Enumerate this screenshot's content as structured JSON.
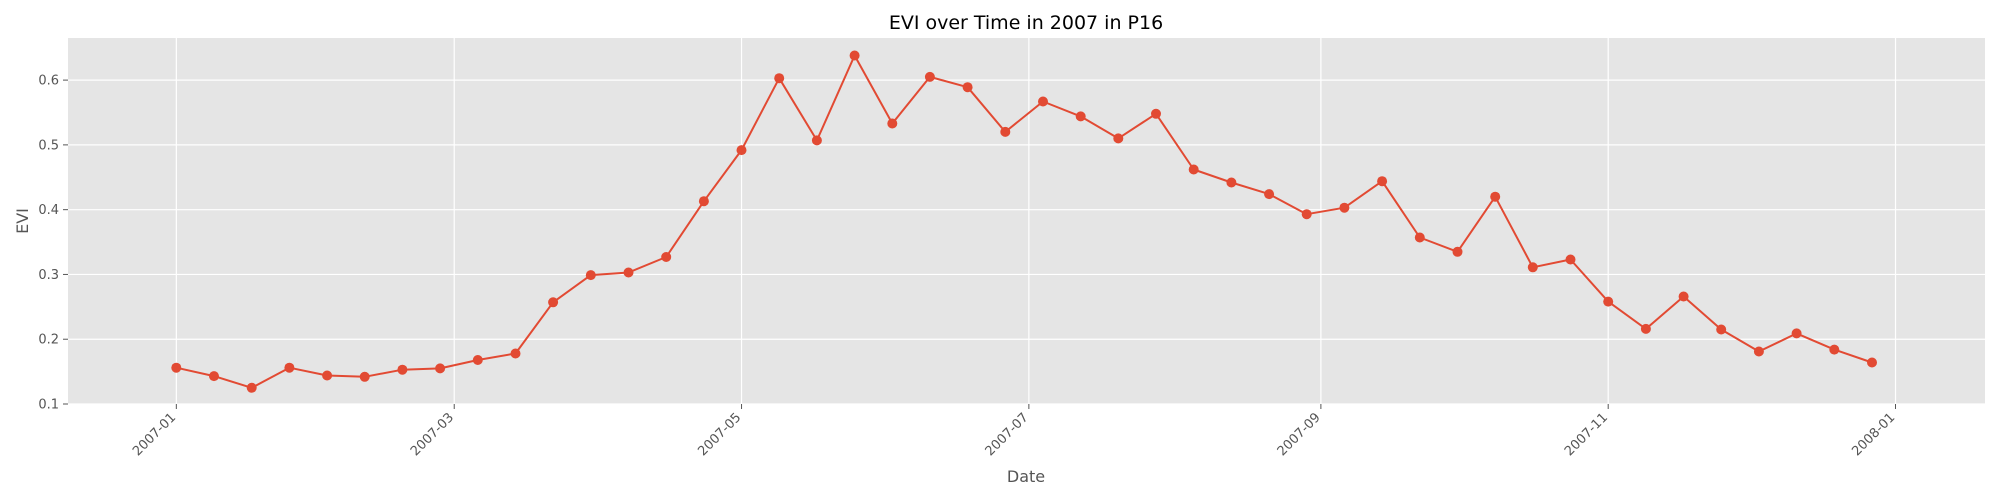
{
  "chart_data": {
    "type": "line",
    "title": "EVI over Time in 2007 in P16",
    "xlabel": "Date",
    "ylabel": "EVI",
    "xlim": [
      "2006-12-09",
      "2008-01-20"
    ],
    "ylim": [
      0.1,
      0.665
    ],
    "grid": true,
    "marker": "circle",
    "colors": {
      "line": "#E24A33",
      "panel": "#E5E5E5",
      "grid": "#FFFFFF"
    },
    "x_ticks": [
      "2007-01",
      "2007-03",
      "2007-05",
      "2007-07",
      "2007-09",
      "2007-11",
      "2008-01"
    ],
    "y_ticks": [
      "0.1",
      "0.2",
      "0.3",
      "0.4",
      "0.5",
      "0.6"
    ],
    "series": [
      {
        "x": [
          "2007-01-01",
          "2007-01-09",
          "2007-01-17",
          "2007-01-25",
          "2007-02-02",
          "2007-02-10",
          "2007-02-18",
          "2007-02-26",
          "2007-03-06",
          "2007-03-14",
          "2007-03-22",
          "2007-03-30",
          "2007-04-07",
          "2007-04-15",
          "2007-04-23",
          "2007-05-01",
          "2007-05-09",
          "2007-05-17",
          "2007-05-25",
          "2007-06-02",
          "2007-06-10",
          "2007-06-18",
          "2007-06-26",
          "2007-07-04",
          "2007-07-12",
          "2007-07-20",
          "2007-07-28",
          "2007-08-05",
          "2007-08-13",
          "2007-08-21",
          "2007-08-29",
          "2007-09-06",
          "2007-09-14",
          "2007-09-22",
          "2007-09-30",
          "2007-10-08",
          "2007-10-16",
          "2007-10-24",
          "2007-11-01",
          "2007-11-09",
          "2007-11-17",
          "2007-11-25",
          "2007-12-03",
          "2007-12-11",
          "2007-12-19",
          "2007-12-27"
        ],
        "y": [
          0.156,
          0.143,
          0.125,
          0.156,
          0.144,
          0.142,
          0.153,
          0.155,
          0.168,
          0.178,
          0.257,
          0.299,
          0.303,
          0.327,
          0.413,
          0.492,
          0.603,
          0.507,
          0.638,
          0.533,
          0.605,
          0.589,
          0.52,
          0.567,
          0.544,
          0.51,
          0.548,
          0.462,
          0.442,
          0.424,
          0.393,
          0.403,
          0.444,
          0.357,
          0.335,
          0.42,
          0.311,
          0.323,
          0.258,
          0.216,
          0.266,
          0.215,
          0.181,
          0.209,
          0.184,
          0.164
        ]
      }
    ]
  }
}
